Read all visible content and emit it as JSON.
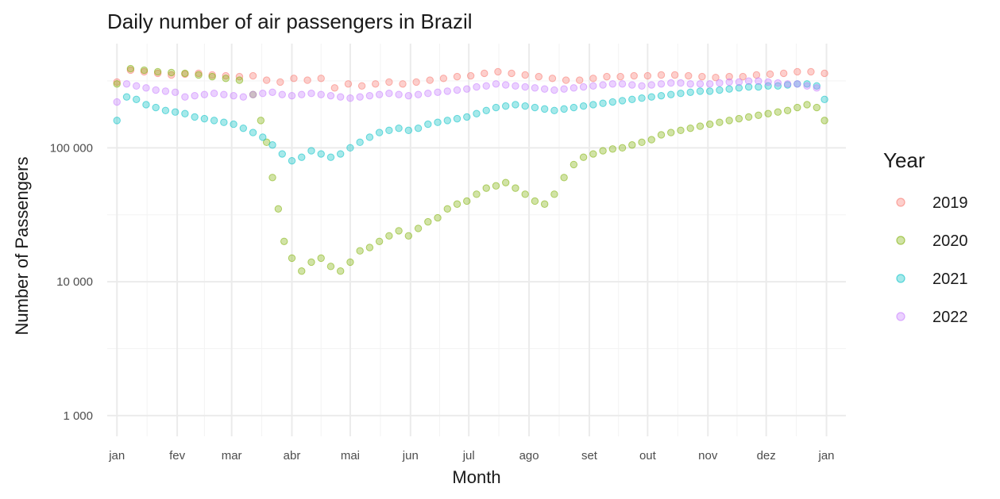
{
  "chart_data": {
    "type": "scatter",
    "title": "Daily number of air passengers in Brazil",
    "xlabel": "Month",
    "ylabel": "Number of Passengers",
    "x_ticks": [
      "jan",
      "fev",
      "mar",
      "abr",
      "mai",
      "jun",
      "jul",
      "ago",
      "set",
      "out",
      "nov",
      "dez",
      "jan"
    ],
    "x_range_days": [
      -5,
      375
    ],
    "y_scale": "log10",
    "y_ticks": [
      {
        "value": 1000,
        "label": "1 000"
      },
      {
        "value": 10000,
        "label": "10 000"
      },
      {
        "value": 100000,
        "label": "100 000"
      }
    ],
    "ylim": [
      700,
      600000
    ],
    "grid": true,
    "legend": {
      "title": "Year",
      "position": "right"
    },
    "series": [
      {
        "name": "2019",
        "color": "#F8766D",
        "points": [
          [
            0,
            310000
          ],
          [
            7,
            380000
          ],
          [
            14,
            370000
          ],
          [
            21,
            360000
          ],
          [
            28,
            350000
          ],
          [
            35,
            355000
          ],
          [
            42,
            360000
          ],
          [
            49,
            350000
          ],
          [
            56,
            345000
          ],
          [
            63,
            340000
          ],
          [
            70,
            345000
          ],
          [
            77,
            320000
          ],
          [
            84,
            310000
          ],
          [
            91,
            330000
          ],
          [
            98,
            320000
          ],
          [
            105,
            330000
          ],
          [
            112,
            280000
          ],
          [
            119,
            300000
          ],
          [
            126,
            290000
          ],
          [
            133,
            300000
          ],
          [
            140,
            310000
          ],
          [
            147,
            300000
          ],
          [
            154,
            310000
          ],
          [
            161,
            320000
          ],
          [
            168,
            330000
          ],
          [
            175,
            340000
          ],
          [
            182,
            345000
          ],
          [
            189,
            360000
          ],
          [
            196,
            370000
          ],
          [
            203,
            360000
          ],
          [
            210,
            350000
          ],
          [
            217,
            340000
          ],
          [
            224,
            330000
          ],
          [
            231,
            320000
          ],
          [
            238,
            320000
          ],
          [
            245,
            330000
          ],
          [
            252,
            340000
          ],
          [
            259,
            340000
          ],
          [
            266,
            345000
          ],
          [
            273,
            345000
          ],
          [
            280,
            350000
          ],
          [
            287,
            350000
          ],
          [
            294,
            345000
          ],
          [
            301,
            340000
          ],
          [
            308,
            335000
          ],
          [
            315,
            340000
          ],
          [
            322,
            340000
          ],
          [
            329,
            350000
          ],
          [
            336,
            355000
          ],
          [
            343,
            360000
          ],
          [
            350,
            370000
          ],
          [
            357,
            370000
          ],
          [
            364,
            360000
          ]
        ]
      },
      {
        "name": "2020",
        "color": "#7CAE00",
        "points": [
          [
            0,
            300000
          ],
          [
            7,
            390000
          ],
          [
            14,
            380000
          ],
          [
            21,
            370000
          ],
          [
            28,
            365000
          ],
          [
            35,
            360000
          ],
          [
            42,
            350000
          ],
          [
            49,
            340000
          ],
          [
            56,
            330000
          ],
          [
            63,
            320000
          ],
          [
            70,
            250000
          ],
          [
            74,
            160000
          ],
          [
            77,
            110000
          ],
          [
            80,
            60000
          ],
          [
            83,
            35000
          ],
          [
            86,
            20000
          ],
          [
            90,
            15000
          ],
          [
            95,
            12000
          ],
          [
            100,
            14000
          ],
          [
            105,
            15000
          ],
          [
            110,
            13000
          ],
          [
            115,
            12000
          ],
          [
            120,
            14000
          ],
          [
            125,
            17000
          ],
          [
            130,
            18000
          ],
          [
            135,
            20000
          ],
          [
            140,
            22000
          ],
          [
            145,
            24000
          ],
          [
            150,
            22000
          ],
          [
            155,
            25000
          ],
          [
            160,
            28000
          ],
          [
            165,
            30000
          ],
          [
            170,
            35000
          ],
          [
            175,
            38000
          ],
          [
            180,
            40000
          ],
          [
            185,
            45000
          ],
          [
            190,
            50000
          ],
          [
            195,
            52000
          ],
          [
            200,
            55000
          ],
          [
            205,
            50000
          ],
          [
            210,
            45000
          ],
          [
            215,
            40000
          ],
          [
            220,
            38000
          ],
          [
            225,
            45000
          ],
          [
            230,
            60000
          ],
          [
            235,
            75000
          ],
          [
            240,
            85000
          ],
          [
            245,
            90000
          ],
          [
            250,
            95000
          ],
          [
            255,
            98000
          ],
          [
            260,
            100000
          ],
          [
            265,
            105000
          ],
          [
            270,
            110000
          ],
          [
            275,
            115000
          ],
          [
            280,
            125000
          ],
          [
            285,
            130000
          ],
          [
            290,
            135000
          ],
          [
            295,
            140000
          ],
          [
            300,
            145000
          ],
          [
            305,
            150000
          ],
          [
            310,
            155000
          ],
          [
            315,
            160000
          ],
          [
            320,
            165000
          ],
          [
            325,
            170000
          ],
          [
            330,
            175000
          ],
          [
            335,
            180000
          ],
          [
            340,
            185000
          ],
          [
            345,
            190000
          ],
          [
            350,
            200000
          ],
          [
            355,
            210000
          ],
          [
            360,
            200000
          ],
          [
            364,
            160000
          ]
        ]
      },
      {
        "name": "2021",
        "color": "#00BFC4",
        "points": [
          [
            0,
            160000
          ],
          [
            5,
            240000
          ],
          [
            10,
            230000
          ],
          [
            15,
            210000
          ],
          [
            20,
            200000
          ],
          [
            25,
            190000
          ],
          [
            30,
            185000
          ],
          [
            35,
            180000
          ],
          [
            40,
            170000
          ],
          [
            45,
            165000
          ],
          [
            50,
            160000
          ],
          [
            55,
            155000
          ],
          [
            60,
            150000
          ],
          [
            65,
            140000
          ],
          [
            70,
            130000
          ],
          [
            75,
            120000
          ],
          [
            80,
            105000
          ],
          [
            85,
            90000
          ],
          [
            90,
            80000
          ],
          [
            95,
            85000
          ],
          [
            100,
            95000
          ],
          [
            105,
            90000
          ],
          [
            110,
            85000
          ],
          [
            115,
            90000
          ],
          [
            120,
            100000
          ],
          [
            125,
            110000
          ],
          [
            130,
            120000
          ],
          [
            135,
            130000
          ],
          [
            140,
            135000
          ],
          [
            145,
            140000
          ],
          [
            150,
            135000
          ],
          [
            155,
            140000
          ],
          [
            160,
            150000
          ],
          [
            165,
            155000
          ],
          [
            170,
            160000
          ],
          [
            175,
            165000
          ],
          [
            180,
            170000
          ],
          [
            185,
            180000
          ],
          [
            190,
            190000
          ],
          [
            195,
            200000
          ],
          [
            200,
            205000
          ],
          [
            205,
            210000
          ],
          [
            210,
            205000
          ],
          [
            215,
            200000
          ],
          [
            220,
            195000
          ],
          [
            225,
            190000
          ],
          [
            230,
            195000
          ],
          [
            235,
            200000
          ],
          [
            240,
            205000
          ],
          [
            245,
            210000
          ],
          [
            250,
            215000
          ],
          [
            255,
            220000
          ],
          [
            260,
            225000
          ],
          [
            265,
            230000
          ],
          [
            270,
            235000
          ],
          [
            275,
            240000
          ],
          [
            280,
            245000
          ],
          [
            285,
            250000
          ],
          [
            290,
            255000
          ],
          [
            295,
            260000
          ],
          [
            300,
            265000
          ],
          [
            305,
            265000
          ],
          [
            310,
            270000
          ],
          [
            315,
            275000
          ],
          [
            320,
            280000
          ],
          [
            325,
            285000
          ],
          [
            330,
            285000
          ],
          [
            335,
            290000
          ],
          [
            340,
            290000
          ],
          [
            345,
            295000
          ],
          [
            350,
            300000
          ],
          [
            355,
            300000
          ],
          [
            360,
            290000
          ],
          [
            364,
            230000
          ]
        ]
      },
      {
        "name": "2022",
        "color": "#C77CFF",
        "points": [
          [
            0,
            220000
          ],
          [
            5,
            300000
          ],
          [
            10,
            290000
          ],
          [
            15,
            280000
          ],
          [
            20,
            270000
          ],
          [
            25,
            265000
          ],
          [
            30,
            260000
          ],
          [
            35,
            240000
          ],
          [
            40,
            245000
          ],
          [
            45,
            250000
          ],
          [
            50,
            255000
          ],
          [
            55,
            250000
          ],
          [
            60,
            245000
          ],
          [
            65,
            240000
          ],
          [
            70,
            250000
          ],
          [
            75,
            255000
          ],
          [
            80,
            260000
          ],
          [
            85,
            250000
          ],
          [
            90,
            245000
          ],
          [
            95,
            250000
          ],
          [
            100,
            255000
          ],
          [
            105,
            250000
          ],
          [
            110,
            245000
          ],
          [
            115,
            240000
          ],
          [
            120,
            235000
          ],
          [
            125,
            240000
          ],
          [
            130,
            245000
          ],
          [
            135,
            250000
          ],
          [
            140,
            255000
          ],
          [
            145,
            250000
          ],
          [
            150,
            245000
          ],
          [
            155,
            250000
          ],
          [
            160,
            255000
          ],
          [
            165,
            260000
          ],
          [
            170,
            265000
          ],
          [
            175,
            270000
          ],
          [
            180,
            275000
          ],
          [
            185,
            285000
          ],
          [
            190,
            290000
          ],
          [
            195,
            300000
          ],
          [
            200,
            295000
          ],
          [
            205,
            290000
          ],
          [
            210,
            285000
          ],
          [
            215,
            280000
          ],
          [
            220,
            275000
          ],
          [
            225,
            270000
          ],
          [
            230,
            275000
          ],
          [
            235,
            280000
          ],
          [
            240,
            285000
          ],
          [
            245,
            290000
          ],
          [
            250,
            295000
          ],
          [
            255,
            300000
          ],
          [
            260,
            300000
          ],
          [
            265,
            295000
          ],
          [
            270,
            290000
          ],
          [
            275,
            295000
          ],
          [
            280,
            300000
          ],
          [
            285,
            305000
          ],
          [
            290,
            305000
          ],
          [
            295,
            300000
          ],
          [
            300,
            300000
          ],
          [
            305,
            300000
          ],
          [
            310,
            305000
          ],
          [
            315,
            310000
          ],
          [
            320,
            310000
          ],
          [
            325,
            315000
          ],
          [
            330,
            315000
          ],
          [
            335,
            310000
          ],
          [
            340,
            305000
          ],
          [
            345,
            300000
          ],
          [
            350,
            300000
          ],
          [
            355,
            290000
          ],
          [
            360,
            280000
          ]
        ]
      }
    ]
  }
}
